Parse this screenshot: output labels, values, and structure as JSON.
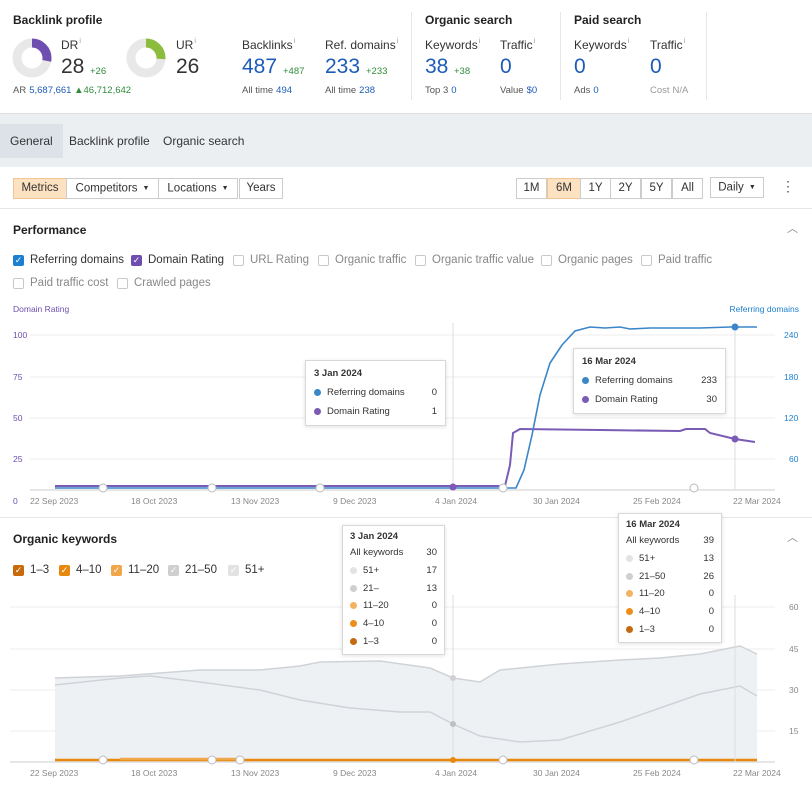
{
  "backlink_profile": {
    "title": "Backlink profile",
    "dr": {
      "label": "DR",
      "value": "28",
      "delta": "+26",
      "fraction": 0.28
    },
    "ur": {
      "label": "UR",
      "value": "26",
      "fraction": 0.26
    },
    "ar": {
      "label": "AR",
      "value": "5,687,661",
      "delta": "▲46,712,642"
    },
    "backlinks": {
      "label": "Backlinks",
      "value": "487",
      "delta": "+487",
      "sub_label": "All time",
      "sub_value": "494"
    },
    "ref_domains": {
      "label": "Ref. domains",
      "value": "233",
      "delta": "+233",
      "sub_label": "All time",
      "sub_value": "238"
    }
  },
  "organic_search": {
    "title": "Organic search",
    "keywords": {
      "label": "Keywords",
      "value": "38",
      "delta": "+38",
      "sub_label": "Top 3",
      "sub_value": "0"
    },
    "traffic": {
      "label": "Traffic",
      "value": "0",
      "sub_label": "Value",
      "sub_value": "$0"
    }
  },
  "paid_search": {
    "title": "Paid search",
    "keywords": {
      "label": "Keywords",
      "value": "0",
      "sub_label": "Ads",
      "sub_value": "0"
    },
    "traffic": {
      "label": "Traffic",
      "value": "0",
      "sub_label": "Cost",
      "sub_value": "N/A"
    }
  },
  "tabs": [
    "General",
    "Backlink profile",
    "Organic search"
  ],
  "toolbar": {
    "metrics": "Metrics",
    "competitors": "Competitors",
    "locations": "Locations",
    "years": "Years",
    "ranges": [
      "1M",
      "6M",
      "1Y",
      "2Y",
      "5Y",
      "All"
    ],
    "active_range": "6M",
    "interval": "Daily"
  },
  "performance": {
    "title": "Performance",
    "checkboxes": [
      {
        "label": "Referring domains",
        "checked": true,
        "color": "#1c7fcf"
      },
      {
        "label": "Domain Rating",
        "checked": true,
        "color": "#6e4fb0"
      },
      {
        "label": "URL Rating",
        "checked": false
      },
      {
        "label": "Organic traffic",
        "checked": false
      },
      {
        "label": "Organic traffic value",
        "checked": false
      },
      {
        "label": "Organic pages",
        "checked": false
      },
      {
        "label": "Paid traffic",
        "checked": false
      },
      {
        "label": "Paid traffic cost",
        "checked": false
      },
      {
        "label": "Crawled pages",
        "checked": false
      }
    ],
    "left_axis_title": "Domain Rating",
    "right_axis_title": "Referring domains",
    "left_ticks": [
      "100",
      "75",
      "50",
      "25",
      "0"
    ],
    "right_ticks": [
      "240",
      "180",
      "120",
      "60"
    ],
    "x_ticks": [
      "22 Sep 2023",
      "18 Oct 2023",
      "13 Nov 2023",
      "9 Dec 2023",
      "4 Jan 2024",
      "30 Jan 2024",
      "25 Feb 2024",
      "22 Mar 2024"
    ],
    "tooltip1": {
      "date": "3 Jan 2024",
      "rows": [
        {
          "label": "Referring domains",
          "value": "0",
          "color": "#3a86c8"
        },
        {
          "label": "Domain Rating",
          "value": "1",
          "color": "#7a5bb5"
        }
      ]
    },
    "tooltip2": {
      "date": "16 Mar 2024",
      "rows": [
        {
          "label": "Referring domains",
          "value": "233",
          "color": "#3a86c8"
        },
        {
          "label": "Domain Rating",
          "value": "30",
          "color": "#7a5bb5"
        }
      ]
    }
  },
  "organic_keywords": {
    "title": "Organic keywords",
    "checkboxes": [
      {
        "label": "1–3",
        "color": "#c76a0a"
      },
      {
        "label": "4–10",
        "color": "#e8890d"
      },
      {
        "label": "11–20",
        "color": "#f2a64a"
      },
      {
        "label": "21–50",
        "color": "#cfcfcf"
      },
      {
        "label": "51+",
        "color": "#e2e2e2"
      }
    ],
    "right_ticks": [
      "60",
      "45",
      "30",
      "15"
    ],
    "x_ticks": [
      "22 Sep 2023",
      "18 Oct 2023",
      "13 Nov 2023",
      "9 Dec 2023",
      "4 Jan 2024",
      "30 Jan 2024",
      "25 Feb 2024",
      "22 Mar 2024"
    ],
    "tooltip1": {
      "date": "3 Jan 2024",
      "all_label": "All keywords",
      "all_value": "30",
      "rows": [
        {
          "label": "51+",
          "value": "17",
          "color": "#e3e3e3"
        },
        {
          "label": "21–",
          "value": "13",
          "color": "#cfcfcf"
        },
        {
          "label": "11–20",
          "value": "0",
          "color": "#f2b25f"
        },
        {
          "label": "4–10",
          "value": "0",
          "color": "#ee8e1a"
        },
        {
          "label": "1–3",
          "value": "0",
          "color": "#c46a10"
        }
      ]
    },
    "tooltip2": {
      "date": "16 Mar 2024",
      "all_label": "All keywords",
      "all_value": "39",
      "rows": [
        {
          "label": "51+",
          "value": "13",
          "color": "#e3e3e3"
        },
        {
          "label": "21–50",
          "value": "26",
          "color": "#cfcfcf"
        },
        {
          "label": "11–20",
          "value": "0",
          "color": "#f2b25f"
        },
        {
          "label": "4–10",
          "value": "0",
          "color": "#ee8e1a"
        },
        {
          "label": "1–3",
          "value": "0",
          "color": "#c46a10"
        }
      ]
    }
  },
  "chart_data": [
    {
      "type": "line",
      "title": "Performance",
      "x": [
        "22 Sep 2023",
        "18 Oct 2023",
        "13 Nov 2023",
        "9 Dec 2023",
        "4 Jan 2024",
        "30 Jan 2024",
        "25 Feb 2024",
        "22 Mar 2024"
      ],
      "series": [
        {
          "name": "Referring domains",
          "axis": "right",
          "color": "#3a86c8",
          "values": [
            0,
            0,
            0,
            0,
            0,
            233,
            235,
            233
          ]
        },
        {
          "name": "Domain Rating",
          "axis": "left",
          "color": "#7a5bb5",
          "values": [
            1,
            1,
            1,
            1,
            1,
            35,
            34,
            30
          ]
        }
      ],
      "ylim_left": [
        0,
        100
      ],
      "ylim_right": [
        0,
        240
      ],
      "grid": true
    },
    {
      "type": "area",
      "title": "Organic keywords",
      "x": [
        "22 Sep 2023",
        "18 Oct 2023",
        "13 Nov 2023",
        "9 Dec 2023",
        "4 Jan 2024",
        "30 Jan 2024",
        "25 Feb 2024",
        "22 Mar 2024"
      ],
      "series": [
        {
          "name": "All keywords",
          "values": [
            33,
            35,
            37,
            38,
            30,
            33,
            40,
            39
          ]
        },
        {
          "name": "21–50",
          "values": [
            28,
            26,
            21,
            18,
            13,
            12,
            19,
            26
          ]
        },
        {
          "name": "1–3",
          "values": [
            0,
            0,
            0,
            0,
            0,
            0,
            0,
            0
          ]
        }
      ],
      "ylim": [
        0,
        60
      ],
      "grid": true
    }
  ]
}
